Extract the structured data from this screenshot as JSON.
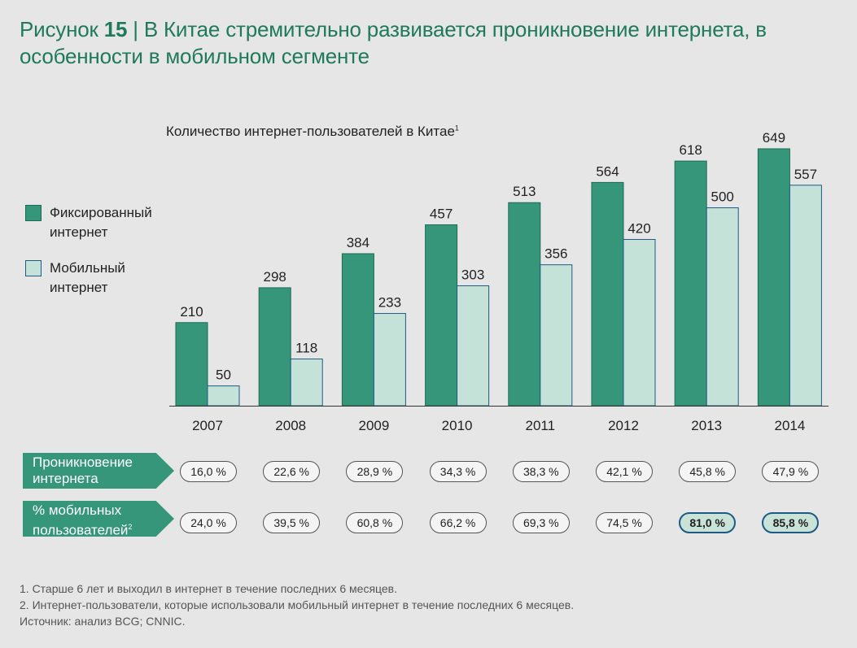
{
  "header": {
    "title_prefix": "Рисунок ",
    "title_number": "15",
    "title_text": " | В Китае стремительно развивается проникновение интернета, в особенности в мобильном сегменте"
  },
  "colors": {
    "fixed": "#35967a",
    "mobile": "#c5e2d8",
    "accent": "#1f7a5a",
    "highlight_border": "#1d5b86"
  },
  "legend": {
    "items": [
      {
        "label": "Фиксированный\nинтернет",
        "color": "#35967a"
      },
      {
        "label": "Мобильный\nинтернет",
        "color": "#c5e2d8"
      }
    ]
  },
  "chart_data": {
    "type": "bar",
    "title": "Количество интернет-пользователей в Китае",
    "title_footnote": "1",
    "categories": [
      "2007",
      "2008",
      "2009",
      "2010",
      "2011",
      "2012",
      "2013",
      "2014"
    ],
    "series": [
      {
        "name": "Фиксированный интернет",
        "values": [
          210,
          298,
          384,
          457,
          513,
          564,
          618,
          649
        ]
      },
      {
        "name": "Мобильный интернет",
        "values": [
          50,
          118,
          233,
          303,
          356,
          420,
          500,
          557
        ]
      }
    ],
    "ylim": [
      0,
      649
    ],
    "grid": false,
    "legend_position": "left"
  },
  "rows": [
    {
      "label": "Проникновение\nинтернета",
      "footnote": "",
      "values": [
        "16,0 %",
        "22,6 %",
        "28,9 %",
        "34,3 %",
        "38,3 %",
        "42,1 %",
        "45,8 %",
        "47,9 %"
      ],
      "highlighted": [
        false,
        false,
        false,
        false,
        false,
        false,
        false,
        false
      ]
    },
    {
      "label": " % мобильных\nпользователей",
      "footnote": "2",
      "values": [
        "24,0 %",
        "39,5 %",
        "60,8 %",
        "66,2 %",
        "69,3 %",
        "74,5 %",
        "81,0 %",
        "85,8 %"
      ],
      "highlighted": [
        false,
        false,
        false,
        false,
        false,
        false,
        true,
        true
      ]
    }
  ],
  "notes": [
    "1. Старше 6 лет и выходил в интернет в течение последних 6 месяцев.",
    "2. Интернет-пользователи, которые использовали мобильный интернет в течение последних 6 месяцев.",
    "Источник: анализ BCG; CNNIC."
  ]
}
